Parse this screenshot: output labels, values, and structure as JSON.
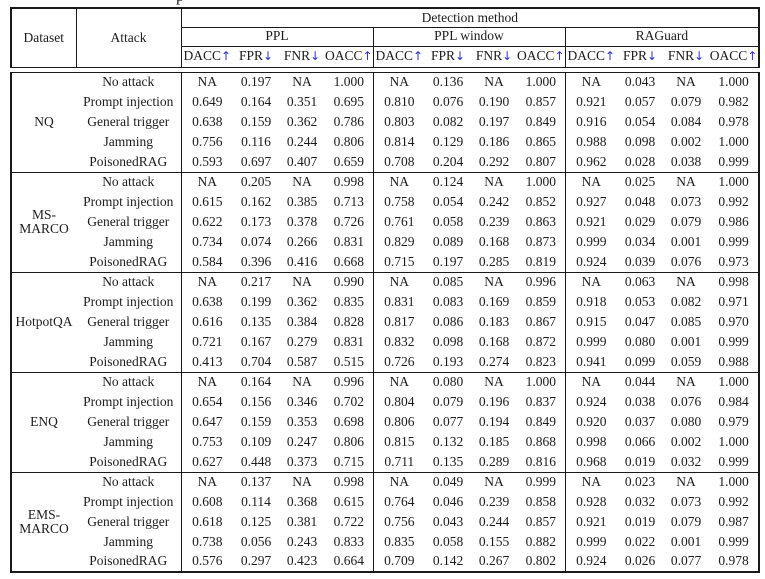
{
  "caption_fragment": "p",
  "colors": {
    "arrow": "#2b2bd4",
    "rule": "#1a1a1a",
    "text": "#1c1c1c"
  },
  "header": {
    "dataset": "Dataset",
    "attack": "Attack",
    "detection_method": "Detection method",
    "groups": [
      {
        "name": "PPL"
      },
      {
        "name": "PPL window"
      },
      {
        "name": "RAGuard"
      }
    ],
    "metrics": [
      {
        "label": "DACC",
        "arrow": "↑"
      },
      {
        "label": "FPR",
        "arrow": "↓"
      },
      {
        "label": "FNR",
        "arrow": "↓"
      },
      {
        "label": "OACC",
        "arrow": "↑"
      }
    ]
  },
  "blocks": [
    {
      "dataset": "NQ",
      "rows": [
        {
          "attack": "No attack",
          "ppl": [
            "NA",
            "0.197",
            "NA",
            "1.000"
          ],
          "ppl_window": [
            "NA",
            "0.136",
            "NA",
            "1.000"
          ],
          "raguard": [
            "NA",
            "0.043",
            "NA",
            "1.000"
          ]
        },
        {
          "attack": "Prompt injection",
          "ppl": [
            "0.649",
            "0.164",
            "0.351",
            "0.695"
          ],
          "ppl_window": [
            "0.810",
            "0.076",
            "0.190",
            "0.857"
          ],
          "raguard": [
            "0.921",
            "0.057",
            "0.079",
            "0.982"
          ]
        },
        {
          "attack": "General trigger",
          "ppl": [
            "0.638",
            "0.159",
            "0.362",
            "0.786"
          ],
          "ppl_window": [
            "0.803",
            "0.082",
            "0.197",
            "0.849"
          ],
          "raguard": [
            "0.916",
            "0.054",
            "0.084",
            "0.978"
          ]
        },
        {
          "attack": "Jamming",
          "ppl": [
            "0.756",
            "0.116",
            "0.244",
            "0.806"
          ],
          "ppl_window": [
            "0.814",
            "0.129",
            "0.186",
            "0.865"
          ],
          "raguard": [
            "0.988",
            "0.098",
            "0.002",
            "1.000"
          ]
        },
        {
          "attack": "PoisonedRAG",
          "ppl": [
            "0.593",
            "0.697",
            "0.407",
            "0.659"
          ],
          "ppl_window": [
            "0.708",
            "0.204",
            "0.292",
            "0.807"
          ],
          "raguard": [
            "0.962",
            "0.028",
            "0.038",
            "0.999"
          ]
        }
      ]
    },
    {
      "dataset": "MS-MARCO",
      "rows": [
        {
          "attack": "No attack",
          "ppl": [
            "NA",
            "0.205",
            "NA",
            "0.998"
          ],
          "ppl_window": [
            "NA",
            "0.124",
            "NA",
            "1.000"
          ],
          "raguard": [
            "NA",
            "0.025",
            "NA",
            "1.000"
          ]
        },
        {
          "attack": "Prompt injection",
          "ppl": [
            "0.615",
            "0.162",
            "0.385",
            "0.713"
          ],
          "ppl_window": [
            "0.758",
            "0.054",
            "0.242",
            "0.852"
          ],
          "raguard": [
            "0.927",
            "0.048",
            "0.073",
            "0.992"
          ]
        },
        {
          "attack": "General trigger",
          "ppl": [
            "0.622",
            "0.173",
            "0.378",
            "0.726"
          ],
          "ppl_window": [
            "0.761",
            "0.058",
            "0.239",
            "0.863"
          ],
          "raguard": [
            "0.921",
            "0.029",
            "0.079",
            "0.986"
          ]
        },
        {
          "attack": "Jamming",
          "ppl": [
            "0.734",
            "0.074",
            "0.266",
            "0.831"
          ],
          "ppl_window": [
            "0.829",
            "0.089",
            "0.168",
            "0.873"
          ],
          "raguard": [
            "0.999",
            "0.034",
            "0.001",
            "0.999"
          ]
        },
        {
          "attack": "PoisonedRAG",
          "ppl": [
            "0.584",
            "0.396",
            "0.416",
            "0.668"
          ],
          "ppl_window": [
            "0.715",
            "0.197",
            "0.285",
            "0.819"
          ],
          "raguard": [
            "0.924",
            "0.039",
            "0.076",
            "0.973"
          ]
        }
      ]
    },
    {
      "dataset": "HotpotQA",
      "rows": [
        {
          "attack": "No attack",
          "ppl": [
            "NA",
            "0.217",
            "NA",
            "0.990"
          ],
          "ppl_window": [
            "NA",
            "0.085",
            "NA",
            "0.996"
          ],
          "raguard": [
            "NA",
            "0.063",
            "NA",
            "0.998"
          ]
        },
        {
          "attack": "Prompt injection",
          "ppl": [
            "0.638",
            "0.199",
            "0.362",
            "0.835"
          ],
          "ppl_window": [
            "0.831",
            "0.083",
            "0.169",
            "0.859"
          ],
          "raguard": [
            "0.918",
            "0.053",
            "0.082",
            "0.971"
          ]
        },
        {
          "attack": "General trigger",
          "ppl": [
            "0.616",
            "0.135",
            "0.384",
            "0.828"
          ],
          "ppl_window": [
            "0.817",
            "0.086",
            "0.183",
            "0.867"
          ],
          "raguard": [
            "0.915",
            "0.047",
            "0.085",
            "0.970"
          ]
        },
        {
          "attack": "Jamming",
          "ppl": [
            "0.721",
            "0.167",
            "0.279",
            "0.831"
          ],
          "ppl_window": [
            "0.832",
            "0.098",
            "0.168",
            "0.872"
          ],
          "raguard": [
            "0.999",
            "0.080",
            "0.001",
            "0.999"
          ]
        },
        {
          "attack": "PoisonedRAG",
          "ppl": [
            "0.413",
            "0.704",
            "0.587",
            "0.515"
          ],
          "ppl_window": [
            "0.726",
            "0.193",
            "0.274",
            "0.823"
          ],
          "raguard": [
            "0.941",
            "0.099",
            "0.059",
            "0.988"
          ]
        }
      ]
    },
    {
      "dataset": "ENQ",
      "rows": [
        {
          "attack": "No attack",
          "ppl": [
            "NA",
            "0.164",
            "NA",
            "0.996"
          ],
          "ppl_window": [
            "NA",
            "0.080",
            "NA",
            "1.000"
          ],
          "raguard": [
            "NA",
            "0.044",
            "NA",
            "1.000"
          ]
        },
        {
          "attack": "Prompt injection",
          "ppl": [
            "0.654",
            "0.156",
            "0.346",
            "0.702"
          ],
          "ppl_window": [
            "0.804",
            "0.079",
            "0.196",
            "0.837"
          ],
          "raguard": [
            "0.924",
            "0.038",
            "0.076",
            "0.984"
          ]
        },
        {
          "attack": "General trigger",
          "ppl": [
            "0.647",
            "0.159",
            "0.353",
            "0.698"
          ],
          "ppl_window": [
            "0.806",
            "0.077",
            "0.194",
            "0.849"
          ],
          "raguard": [
            "0.920",
            "0.037",
            "0.080",
            "0.979"
          ]
        },
        {
          "attack": "Jamming",
          "ppl": [
            "0.753",
            "0.109",
            "0.247",
            "0.806"
          ],
          "ppl_window": [
            "0.815",
            "0.132",
            "0.185",
            "0.868"
          ],
          "raguard": [
            "0.998",
            "0.066",
            "0.002",
            "1.000"
          ]
        },
        {
          "attack": "PoisonedRAG",
          "ppl": [
            "0.627",
            "0.448",
            "0.373",
            "0.715"
          ],
          "ppl_window": [
            "0.711",
            "0.135",
            "0.289",
            "0.816"
          ],
          "raguard": [
            "0.968",
            "0.019",
            "0.032",
            "0.999"
          ]
        }
      ]
    },
    {
      "dataset": "EMS-MARCO",
      "rows": [
        {
          "attack": "No attack",
          "ppl": [
            "NA",
            "0.137",
            "NA",
            "0.998"
          ],
          "ppl_window": [
            "NA",
            "0.049",
            "NA",
            "0.999"
          ],
          "raguard": [
            "NA",
            "0.023",
            "NA",
            "1.000"
          ]
        },
        {
          "attack": "Prompt injection",
          "ppl": [
            "0.608",
            "0.114",
            "0.368",
            "0.615"
          ],
          "ppl_window": [
            "0.764",
            "0.046",
            "0.239",
            "0.858"
          ],
          "raguard": [
            "0.928",
            "0.032",
            "0.073",
            "0.992"
          ]
        },
        {
          "attack": "General trigger",
          "ppl": [
            "0.618",
            "0.125",
            "0.381",
            "0.722"
          ],
          "ppl_window": [
            "0.756",
            "0.043",
            "0.244",
            "0.857"
          ],
          "raguard": [
            "0.921",
            "0.019",
            "0.079",
            "0.987"
          ]
        },
        {
          "attack": "Jamming",
          "ppl": [
            "0.738",
            "0.056",
            "0.243",
            "0.833"
          ],
          "ppl_window": [
            "0.835",
            "0.058",
            "0.155",
            "0.882"
          ],
          "raguard": [
            "0.999",
            "0.022",
            "0.001",
            "0.999"
          ]
        },
        {
          "attack": "PoisonedRAG",
          "ppl": [
            "0.576",
            "0.297",
            "0.423",
            "0.664"
          ],
          "ppl_window": [
            "0.709",
            "0.142",
            "0.267",
            "0.802"
          ],
          "raguard": [
            "0.924",
            "0.026",
            "0.077",
            "0.978"
          ]
        }
      ]
    }
  ]
}
